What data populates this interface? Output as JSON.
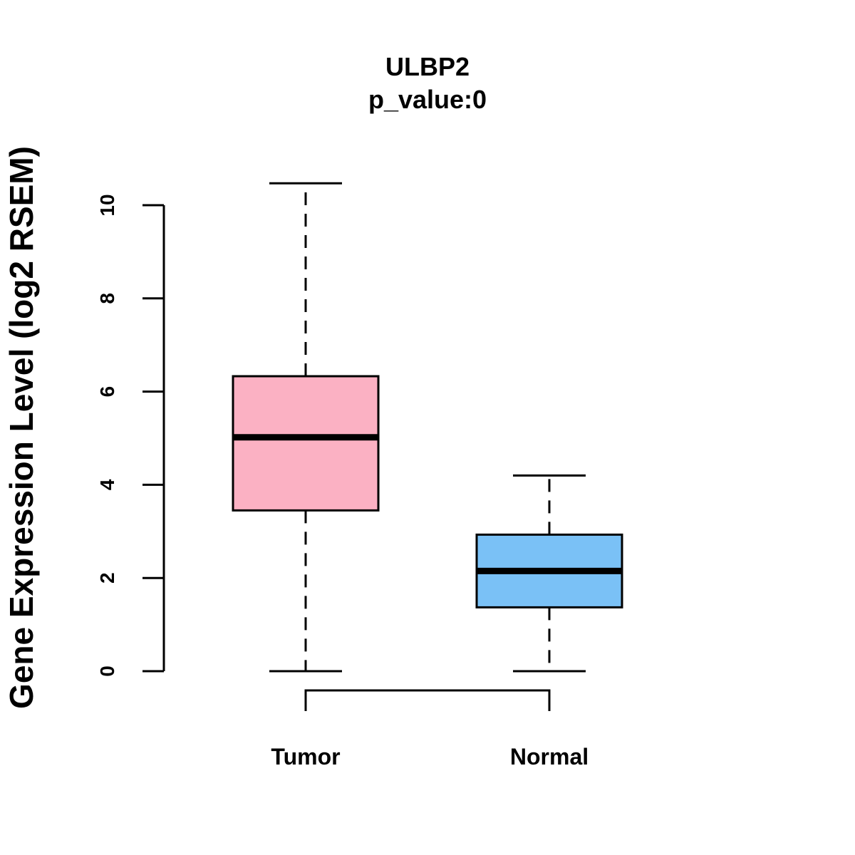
{
  "chart_data": {
    "type": "boxplot",
    "title": "ULBP2",
    "subtitle": "p_value:0",
    "ylabel": "Gene Expression Level (log2 RSEM)",
    "xlabel": "",
    "ylim": [
      0,
      10
    ],
    "yticks": [
      0,
      2,
      4,
      6,
      8,
      10
    ],
    "ytick_labels": [
      "0",
      "2",
      "4",
      "6",
      "8",
      "10"
    ],
    "grid": false,
    "categories": [
      "Tumor",
      "Normal"
    ],
    "boxes": [
      {
        "name": "Tumor",
        "whisker_low": 0,
        "q1": 3.45,
        "median": 5.02,
        "q3": 6.33,
        "whisker_high": 10.47,
        "color": "#FBB1C3"
      },
      {
        "name": "Normal",
        "whisker_low": 0,
        "q1": 1.37,
        "median": 2.15,
        "q3": 2.93,
        "whisker_high": 4.2,
        "color": "#7AC1F6"
      }
    ],
    "comparison_bracket": [
      "Tumor",
      "Normal"
    ]
  }
}
